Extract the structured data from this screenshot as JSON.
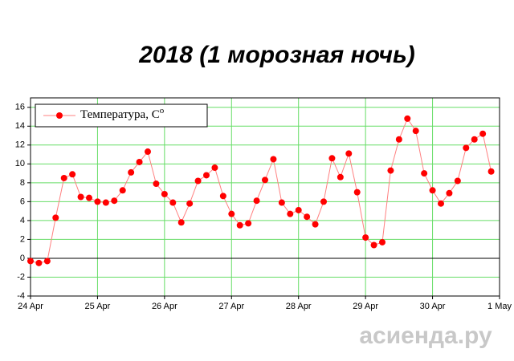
{
  "chart_data": {
    "type": "line",
    "title": "2018 (1 морозная ночь)",
    "x": [
      0,
      3,
      6,
      9,
      12,
      15,
      18,
      21,
      24,
      27,
      30,
      33,
      36,
      39,
      42,
      45,
      48,
      51,
      54,
      57,
      60,
      63,
      66,
      69,
      72,
      75,
      78,
      81,
      84,
      87,
      90,
      93,
      96,
      99,
      102,
      105,
      108,
      111,
      114,
      117,
      120,
      123,
      126,
      129,
      132,
      135,
      138,
      141,
      144,
      147,
      150,
      153,
      156,
      159,
      162,
      165
    ],
    "series": [
      {
        "name": "Температура, С",
        "name_superscript": "o",
        "color": "#ff0000",
        "line_color": "#ff8080",
        "values": [
          -0.3,
          -0.5,
          -0.3,
          4.3,
          8.5,
          8.9,
          6.5,
          6.4,
          6.0,
          5.9,
          6.1,
          7.2,
          9.1,
          10.2,
          11.3,
          7.9,
          6.8,
          5.9,
          3.8,
          5.8,
          8.2,
          8.8,
          9.6,
          6.6,
          4.7,
          3.5,
          3.7,
          6.1,
          8.3,
          10.5,
          5.9,
          4.7,
          5.1,
          4.4,
          3.6,
          6.0,
          10.6,
          8.6,
          11.1,
          7.0,
          2.2,
          1.4,
          1.7,
          9.3,
          12.6,
          14.8,
          13.5,
          9.0,
          7.2,
          5.8,
          6.9,
          8.2,
          11.7,
          12.6,
          13.2,
          9.2
        ]
      }
    ],
    "xlim": [
      0,
      168
    ],
    "xticks": [
      {
        "value": 0,
        "label": "24 Apr"
      },
      {
        "value": 24,
        "label": "25 Apr"
      },
      {
        "value": 48,
        "label": "26 Apr"
      },
      {
        "value": 72,
        "label": "27 Apr"
      },
      {
        "value": 96,
        "label": "28 Apr"
      },
      {
        "value": 120,
        "label": "29 Apr"
      },
      {
        "value": 144,
        "label": "30 Apr"
      },
      {
        "value": 168,
        "label": "1 May"
      }
    ],
    "ylim": [
      -4,
      17
    ],
    "yticks": [
      -4,
      -2,
      0,
      2,
      4,
      6,
      8,
      10,
      12,
      14,
      16
    ],
    "grid": true,
    "grid_color": "#66dd66",
    "legend": "top-left"
  },
  "watermark": "асиенда.ру"
}
